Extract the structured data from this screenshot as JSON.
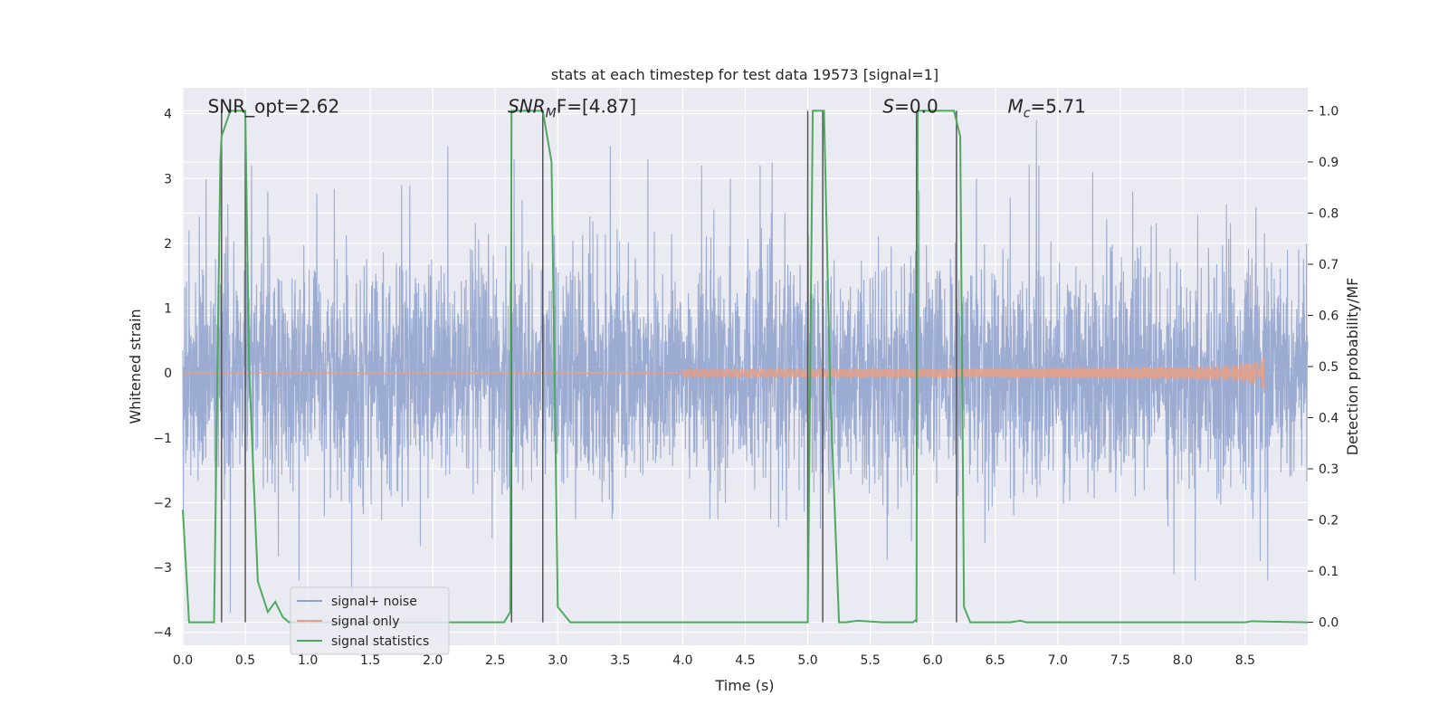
{
  "chart_data": {
    "type": "line",
    "title": "stats at each timestep for test data 19573 [signal=1]",
    "xlabel": "Time (s)",
    "ylabel": "Whitened strain",
    "y2label": "Detection probability/MF",
    "xlim": [
      0.0,
      9.0
    ],
    "ylim": [
      -4.2,
      4.4
    ],
    "y2lim": [
      -0.045,
      1.045
    ],
    "x_ticks": [
      "0.0",
      "0.5",
      "1.0",
      "1.5",
      "2.0",
      "2.5",
      "3.0",
      "3.5",
      "4.0",
      "4.5",
      "5.0",
      "5.5",
      "6.0",
      "6.5",
      "7.0",
      "7.5",
      "8.0",
      "8.5"
    ],
    "y_ticks": [
      "−4",
      "−3",
      "−2",
      "−1",
      "0",
      "1",
      "2",
      "3",
      "4"
    ],
    "y2_ticks": [
      "0.0",
      "0.1",
      "0.2",
      "0.3",
      "0.4",
      "0.5",
      "0.6",
      "0.7",
      "0.8",
      "0.9",
      "1.0"
    ],
    "grid": true,
    "legend_position": "lower-left",
    "annotations": [
      {
        "text": "SNR_opt=2.62",
        "x": 0.2,
        "y": 4.0
      },
      {
        "text": "SNR",
        "sub": "M",
        "text2": "F=[4.87]",
        "italic_prefix": true,
        "x": 2.6,
        "y": 4.0
      },
      {
        "text": "S",
        "text2": "=0.0",
        "italic_prefix": true,
        "x": 5.6,
        "y": 4.0
      },
      {
        "text": "M",
        "sub": "c",
        "text2": "=5.71",
        "italic_prefix": true,
        "x": 6.6,
        "y": 4.0
      }
    ],
    "vertical_markers_x": [
      0.31,
      0.5,
      2.63,
      2.88,
      5.0,
      5.12,
      5.87,
      6.19
    ],
    "series": [
      {
        "name": "signal+ noise",
        "color": "#8da0cb",
        "kind": "noise",
        "noise_std": 1.0,
        "peaks": [
          {
            "x": 0.05,
            "y": 2.2
          },
          {
            "x": 0.36,
            "y": 2.6
          },
          {
            "x": 0.38,
            "y": -3.7
          },
          {
            "x": 0.55,
            "y": 3.2
          },
          {
            "x": 0.68,
            "y": 2.8
          },
          {
            "x": 0.93,
            "y": -3.2
          },
          {
            "x": 1.35,
            "y": -3.4
          },
          {
            "x": 1.75,
            "y": 2.9
          },
          {
            "x": 2.12,
            "y": 3.5
          },
          {
            "x": 2.65,
            "y": 3.3
          },
          {
            "x": 3.42,
            "y": 3.5
          },
          {
            "x": 3.72,
            "y": 3.3
          },
          {
            "x": 4.15,
            "y": 3.2
          },
          {
            "x": 4.38,
            "y": 3.0
          },
          {
            "x": 4.62,
            "y": 3.2
          },
          {
            "x": 5.0,
            "y": 3.0
          },
          {
            "x": 5.83,
            "y": -2.6
          },
          {
            "x": 6.35,
            "y": 3.0
          },
          {
            "x": 6.83,
            "y": 3.9
          },
          {
            "x": 6.85,
            "y": 3.2
          },
          {
            "x": 7.28,
            "y": 3.1
          },
          {
            "x": 7.6,
            "y": 2.8
          },
          {
            "x": 7.93,
            "y": -3.1
          },
          {
            "x": 8.1,
            "y": -3.2
          },
          {
            "x": 8.35,
            "y": 2.6
          },
          {
            "x": 8.62,
            "y": -2.9
          },
          {
            "x": 8.68,
            "y": -3.2
          }
        ]
      },
      {
        "name": "signal only",
        "color": "#e3a08a",
        "kind": "chirp",
        "x_start": 0.0,
        "x_end": 8.65,
        "max_amplitude": 0.25
      },
      {
        "name": "signal statistics",
        "color": "#4daa5e",
        "axis": "right",
        "x": [
          0.0,
          0.05,
          0.25,
          0.3,
          0.31,
          0.38,
          0.42,
          0.5,
          0.53,
          0.6,
          0.68,
          0.74,
          0.8,
          0.85,
          2.57,
          2.62,
          2.63,
          2.68,
          2.88,
          2.95,
          3.0,
          3.1,
          3.2,
          4.95,
          5.0,
          5.04,
          5.07,
          5.1,
          5.13,
          5.18,
          5.25,
          5.3,
          5.4,
          5.6,
          5.84,
          5.87,
          5.88,
          5.93,
          5.95,
          6.17,
          6.22,
          6.25,
          6.3,
          6.62,
          6.7,
          6.75,
          8.5,
          8.55,
          9.0
        ],
        "values": [
          0.22,
          0.0,
          0.0,
          0.9,
          0.95,
          1.0,
          1.0,
          1.0,
          0.5,
          0.08,
          0.02,
          0.04,
          0.01,
          0.0,
          0.0,
          0.02,
          1.0,
          1.0,
          1.0,
          0.9,
          0.03,
          0.0,
          0.0,
          0.0,
          0.0,
          1.0,
          1.0,
          1.0,
          1.0,
          0.45,
          0.0,
          0.0,
          0.003,
          0.0,
          0.0,
          0.005,
          1.0,
          1.0,
          1.0,
          1.0,
          0.95,
          0.03,
          0.0,
          0.0,
          0.003,
          0.0,
          0.0,
          0.002,
          0.0
        ]
      }
    ]
  }
}
